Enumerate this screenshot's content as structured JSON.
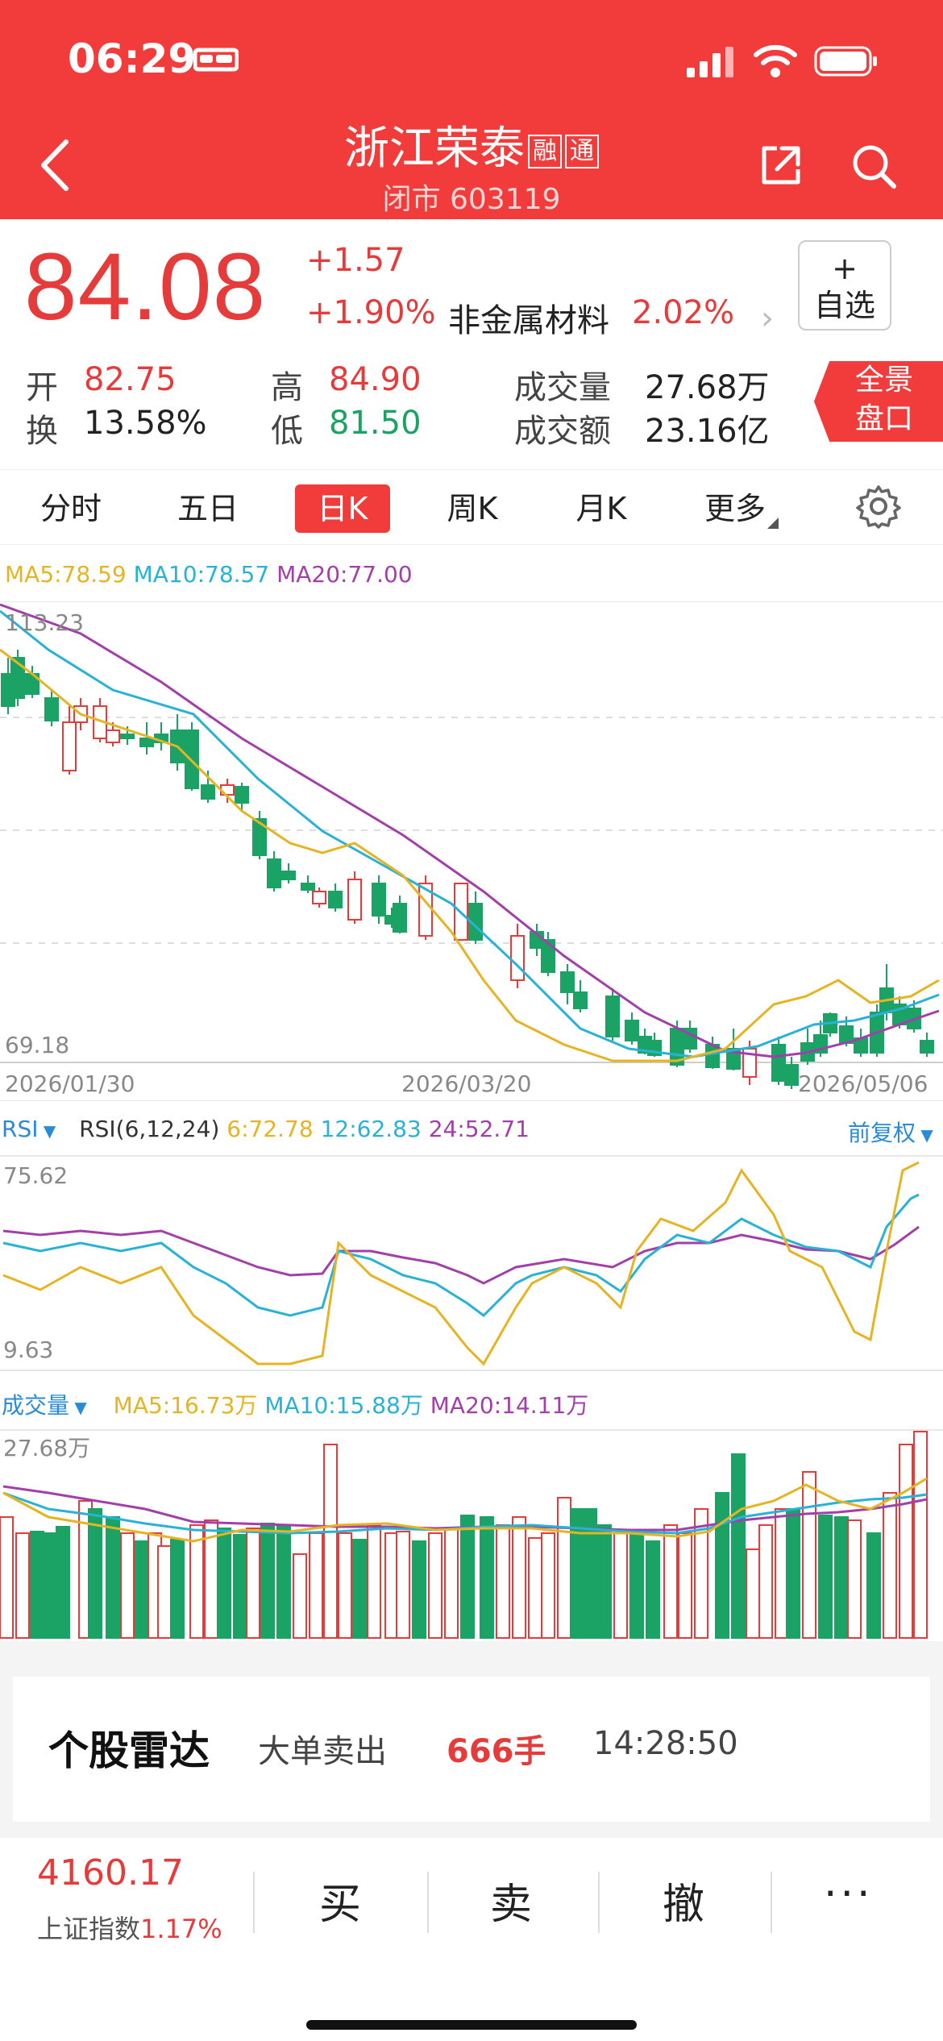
{
  "status_bar": {
    "time": "06:29"
  },
  "header": {
    "title": "浙江荣泰",
    "tag1": "融",
    "tag2": "通",
    "subtitle": "闭市 603119"
  },
  "quote": {
    "price": "84.08",
    "change": "+1.57",
    "change_pct": "+1.90%",
    "sector": "非金属材料",
    "sector_pct": "2.02%",
    "watch_plus": "+",
    "watch_label": "自选",
    "open_label": "开",
    "open": "82.75",
    "high_label": "高",
    "high": "84.90",
    "volume_label": "成交量",
    "volume": "27.68万",
    "turnover_label": "换",
    "turnover": "13.58%",
    "low_label": "低",
    "low": "81.50",
    "amount_label": "成交额",
    "amount": "23.16亿",
    "panorama_line1": "全景",
    "panorama_line2": "盘口"
  },
  "tabs": [
    {
      "label": "分时"
    },
    {
      "label": "五日"
    },
    {
      "label": "日K"
    },
    {
      "label": "周K"
    },
    {
      "label": "月K"
    },
    {
      "label": "更多"
    }
  ],
  "kline": {
    "ma5_label": "MA5:78.59",
    "ma10_label": "MA10:78.57",
    "ma20_label": "MA20:77.00",
    "y_max": "113.23",
    "y_min": "69.18",
    "dates": [
      "2026/01/30",
      "2026/03/20",
      "2026/05/06"
    ]
  },
  "rsi": {
    "name": "RSI",
    "params": "RSI(6,12,24)",
    "rsi6": "6:72.78",
    "rsi12": "12:62.83",
    "rsi24": "24:52.71",
    "adjust": "前复权",
    "y_max": "75.62",
    "y_min": "9.63"
  },
  "volume": {
    "name": "成交量",
    "ma5": "MA5:16.73万",
    "ma10": "MA10:15.88万",
    "ma20": "MA20:14.11万",
    "y_max": "27.68万"
  },
  "radar": {
    "title": "个股雷达",
    "event": "大单卖出",
    "amount": "666手",
    "time": "14:28:50"
  },
  "bottom": {
    "index_value": "4160.17",
    "index_name": "上证指数",
    "index_pct": "1.17%",
    "buy": "买",
    "sell": "卖",
    "cancel": "撤",
    "more": "···"
  },
  "colors": {
    "header_bg": "#f23c3c",
    "up": "#e63b3b",
    "down": "#1aa364",
    "ma5": "#e6b422",
    "ma10": "#27b2d6",
    "ma20": "#a33fa8"
  }
}
